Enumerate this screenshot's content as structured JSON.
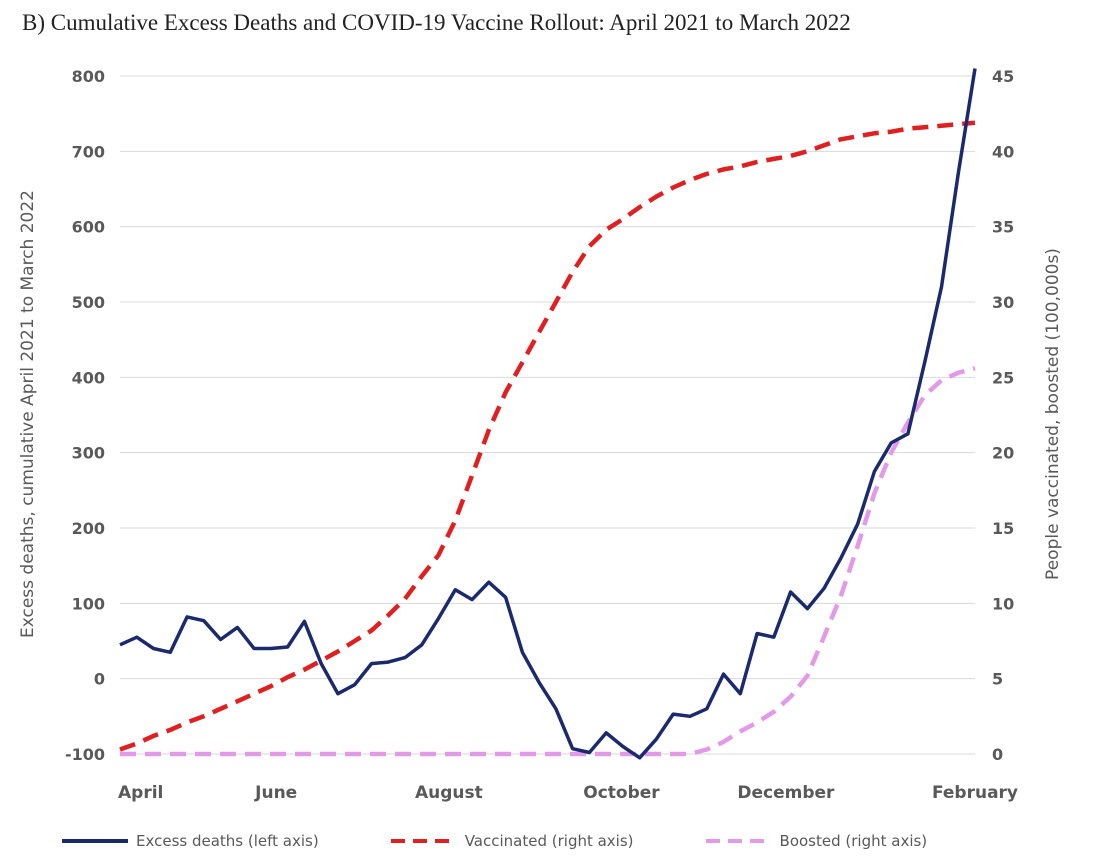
{
  "chart_data": {
    "type": "line",
    "title": "B)  Cumulative Excess Deaths and COVID-19 Vaccine Rollout: April 2021 to March 2022",
    "ylabel": "Excess deaths, cumulative April 2021 to March 2022",
    "y2label": "People vaccinated, boosted (100,000s)",
    "ylim": [
      -100,
      800
    ],
    "y2lim": [
      0,
      45
    ],
    "yticks": [
      "800",
      "700",
      "600",
      "500",
      "400",
      "300",
      "200",
      "100",
      "0",
      "-100"
    ],
    "y2ticks": [
      "45",
      "40",
      "35",
      "30",
      "25",
      "20",
      "15",
      "10",
      "5",
      "0"
    ],
    "xlim": [
      0,
      52
    ],
    "xticks": [
      {
        "label": "April",
        "x": 0
      },
      {
        "label": "June",
        "x": 9.5
      },
      {
        "label": "August",
        "x": 20
      },
      {
        "label": "October",
        "x": 30.5
      },
      {
        "label": "December",
        "x": 40.5
      },
      {
        "label": "February",
        "x": 52
      }
    ],
    "grid": true,
    "legend_position": "bottom",
    "series": [
      {
        "name": "Excess deaths (left axis)",
        "axis": "left",
        "color": "#1a2a6c",
        "style": "solid",
        "values": [
          45,
          55,
          40,
          35,
          82,
          77,
          52,
          68,
          40,
          40,
          42,
          76,
          20,
          -20,
          -8,
          20,
          22,
          28,
          45,
          80,
          118,
          105,
          128,
          108,
          35,
          -5,
          -40,
          -93,
          -98,
          -72,
          -90,
          -105,
          -80,
          -47,
          -50,
          -40,
          6,
          -20,
          60,
          55,
          115,
          93,
          120,
          160,
          205,
          275,
          313,
          325,
          420,
          520,
          670,
          810
        ]
      },
      {
        "name": "Vaccinated (right axis)",
        "axis": "right",
        "color": "#e02020",
        "style": "dash",
        "values": [
          0.3,
          0.7,
          1.2,
          1.6,
          2.1,
          2.5,
          3.0,
          3.5,
          4.0,
          4.5,
          5.1,
          5.6,
          6.2,
          6.8,
          7.5,
          8.2,
          9.2,
          10.3,
          11.8,
          13.2,
          15.5,
          18.5,
          21.5,
          24.0,
          26.0,
          28.0,
          30.0,
          32.0,
          33.7,
          34.8,
          35.5,
          36.3,
          37.0,
          37.6,
          38.1,
          38.5,
          38.8,
          39.0,
          39.3,
          39.5,
          39.7,
          40.0,
          40.4,
          40.8,
          41.0,
          41.2,
          41.3,
          41.5,
          41.6,
          41.7,
          41.8,
          41.9
        ]
      },
      {
        "name": "Boosted (right axis)",
        "axis": "right",
        "color": "#e29ae8",
        "style": "dash",
        "values": [
          0,
          0,
          0,
          0,
          0,
          0,
          0,
          0,
          0,
          0,
          0,
          0,
          0,
          0,
          0,
          0,
          0,
          0,
          0,
          0,
          0,
          0,
          0,
          0,
          0,
          0,
          0,
          0,
          0,
          0,
          0,
          0,
          0,
          0,
          0,
          0.3,
          0.8,
          1.5,
          2.1,
          2.8,
          3.8,
          5.2,
          7.8,
          10.5,
          13.8,
          17.3,
          20.0,
          22.0,
          23.8,
          24.8,
          25.3,
          25.6
        ]
      }
    ]
  }
}
